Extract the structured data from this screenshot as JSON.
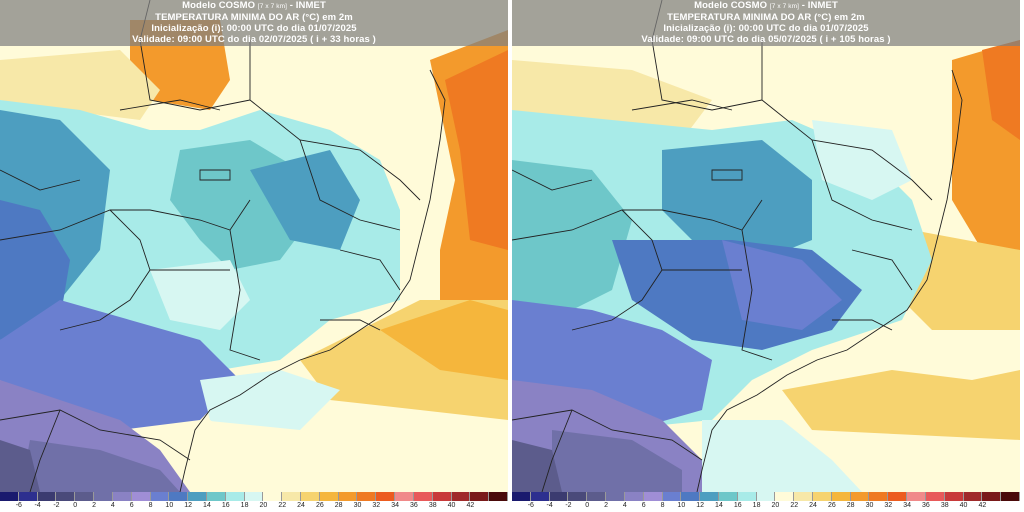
{
  "panels": [
    {
      "model": "Modelo COSMO",
      "resolution": "[7 x 7 km]",
      "institute": "- INMET",
      "variable": "TEMPERATURA MINIMA DO AR (°C) em 2m",
      "init": "Inicialização (i): 00:00 UTC do dia 01/07/2025",
      "valid": "Validade: 09:00 UTC do dia 02/07/2025 ( i + 33 horas )"
    },
    {
      "model": "Modelo COSMO",
      "resolution": "[7 x 7 km]",
      "institute": "- INMET",
      "variable": "TEMPERATURA MINIMA DO AR (°C) em 2m",
      "init": "Inicialização (i): 00:00 UTC do dia 01/07/2025",
      "valid": "Validade: 09:00 UTC do dia 05/07/2025 ( i + 105 horas )"
    }
  ],
  "colorbar": {
    "ticks": [
      "-6",
      "-4",
      "-2",
      "0",
      "2",
      "4",
      "6",
      "8",
      "10",
      "12",
      "14",
      "16",
      "18",
      "20",
      "22",
      "24",
      "26",
      "28",
      "30",
      "32",
      "34",
      "36",
      "38",
      "40",
      "42"
    ],
    "colors": [
      "#1a1a6e",
      "#2d2f8f",
      "#3b3b70",
      "#4a4a7a",
      "#5c5c8c",
      "#7070a8",
      "#8a82c4",
      "#a08ed6",
      "#6a7fd0",
      "#4e79c2",
      "#4d9ec0",
      "#6ec7c9",
      "#a8ebe8",
      "#d7f7f2",
      "#fffbd9",
      "#f7e8a8",
      "#f6d36f",
      "#f5b63c",
      "#f39a2c",
      "#ef7a22",
      "#ec5c1f",
      "#f08a8a",
      "#e85a5a",
      "#c83a3a",
      "#a02a2a",
      "#7a1a1a",
      "#4a0a0a"
    ]
  }
}
